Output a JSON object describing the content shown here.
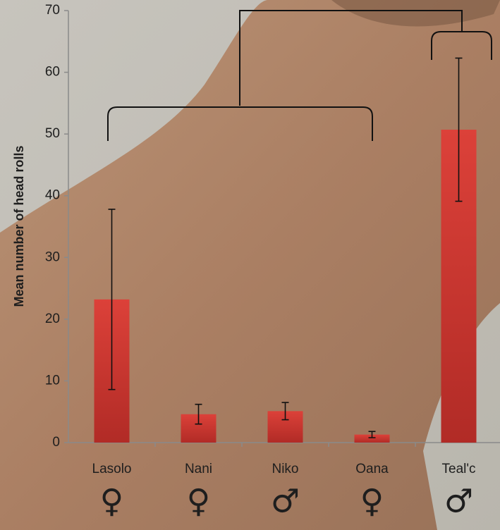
{
  "chart_data": {
    "type": "bar",
    "ylabel": "Mean number of head rolls",
    "categories": [
      "Lasolo",
      "Nani",
      "Niko",
      "Oana",
      "Teal'c"
    ],
    "values": [
      23.2,
      4.6,
      5.1,
      1.3,
      50.7
    ],
    "errors": [
      14.6,
      1.6,
      1.4,
      0.5,
      11.6
    ],
    "sexes": [
      "♀",
      "♀",
      "♂",
      "♀",
      "♂"
    ],
    "color": "#d23b35",
    "ylim": [
      0,
      70
    ],
    "yticks": [
      0,
      10,
      20,
      30,
      40,
      50,
      60,
      70
    ]
  }
}
